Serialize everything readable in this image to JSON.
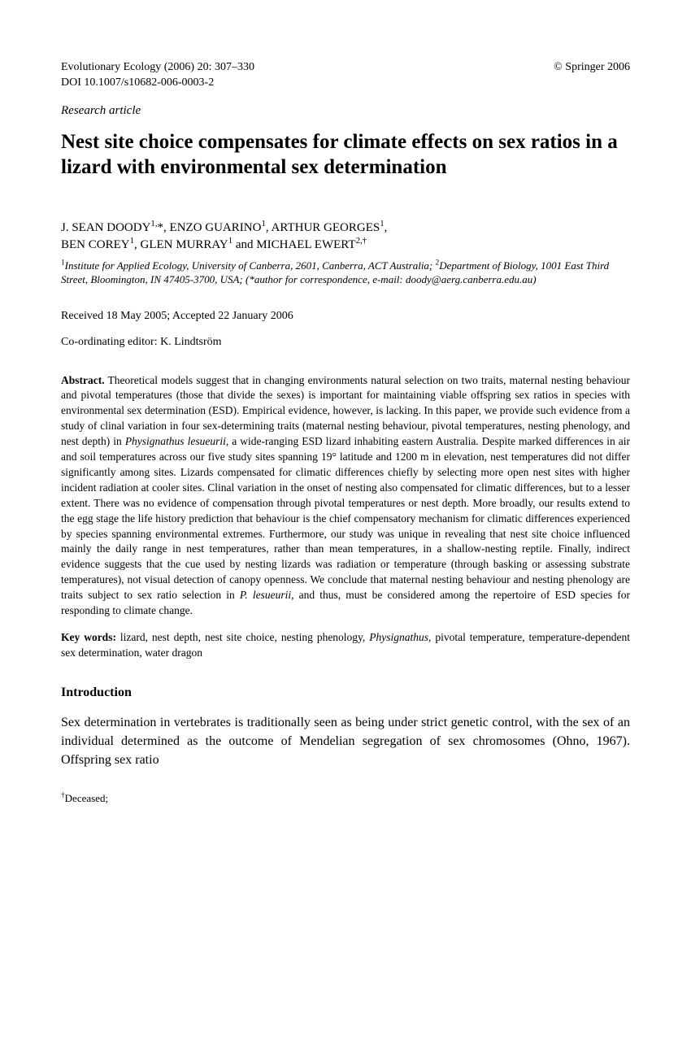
{
  "header": {
    "journal_info": "Evolutionary Ecology (2006) 20: 307–330",
    "copyright": "© Springer 2006",
    "doi": "DOI 10.1007/s10682-006-0003-2"
  },
  "article_type": "Research article",
  "title": "Nest site choice compensates for climate effects on sex ratios in a lizard with environmental sex determination",
  "authors_line1": "J. SEAN DOODY",
  "authors_sup1": "1,",
  "authors_ast": "*, ENZO GUARINO",
  "authors_sup2": "1",
  "authors_mid": ", ARTHUR GEORGES",
  "authors_sup3": "1",
  "authors_comma": ",",
  "authors_line2a": "BEN COREY",
  "authors_sup4": "1",
  "authors_line2b": ", GLEN MURRAY",
  "authors_sup5": "1",
  "authors_line2c": " and MICHAEL EWERT",
  "authors_sup6": "2,†",
  "affiliations": "Institute for Applied Ecology, University of Canberra, 2601, Canberra, ACT Australia; ",
  "affiliations2": "Department of Biology, 1001 East Third Street, Bloomington, IN 47405-3700, USA;  (*author for correspondence, e-mail: doody@aerg.canberra.edu.au)",
  "dates": "Received 18 May 2005; Accepted 22 January 2006",
  "editor": "Co-ordinating editor: K. Lindtsröm",
  "abstract_label": "Abstract.",
  "abstract_text": "  Theoretical models suggest that in changing environments natural selection on two traits, maternal nesting behaviour and pivotal temperatures (those that divide the sexes) is important for maintaining viable offspring sex ratios in species with environmental sex determination (ESD). Empirical evidence, however, is lacking. In this paper, we provide such evidence from a study of clinal variation in four sex-determining traits (maternal nesting behaviour, pivotal temperatures, nesting phenology, and nest depth) in ",
  "abstract_italic1": "Physignathus lesueurii",
  "abstract_text2": ", a wide-ranging ESD lizard inhabiting eastern Australia. Despite marked differences in air and soil temperatures across our five study sites spanning 19° latitude and 1200 m in elevation, nest temperatures did not differ significantly among sites. Lizards compensated for climatic differences chiefly by selecting more open nest sites with higher incident radiation at cooler sites. Clinal variation in the onset of nesting also compensated for climatic differences, but to a lesser extent. There was no evidence of compensation through pivotal temperatures or nest depth. More broadly, our results extend to the egg stage the life history prediction that behaviour is the chief compensatory mechanism for climatic differences experienced by species spanning environmental extremes. Furthermore, our study was unique in revealing that nest site choice influenced mainly the daily range in nest temperatures, rather than mean temperatures, in a shallow-nesting reptile. Finally, indirect evidence suggests that the cue used by nesting lizards was radiation or temperature (through basking or assessing substrate temperatures), not visual detection of canopy openness. We conclude that maternal nesting behaviour and nesting phenology are traits subject to sex ratio selection in ",
  "abstract_italic2": "P. lesueurii",
  "abstract_text3": ", and thus, must be considered among the repertoire of ESD species for responding to climate change.",
  "keywords_label": "Key words:",
  "keywords_text": " lizard, nest depth, nest site choice, nesting phenology, ",
  "keywords_italic": "Physignathus",
  "keywords_text2": ", pivotal temperature, temperature-dependent sex determination, water dragon",
  "intro_heading": "Introduction",
  "intro_text": "Sex determination in vertebrates is traditionally seen as being under strict genetic control, with the sex of an individual determined as the outcome of Mendelian segregation of sex chromosomes (Ohno, 1967). Offspring sex ratio",
  "footnote": "Deceased;"
}
